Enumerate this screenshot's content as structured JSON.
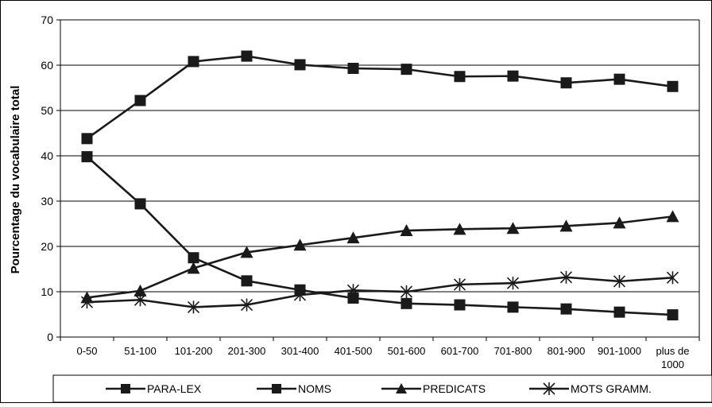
{
  "chart_data": {
    "type": "line",
    "ylabel": "Pourcentage du vocabulaire total",
    "xlabel": "",
    "ylim": [
      0,
      70
    ],
    "yticks": [
      0,
      10,
      20,
      30,
      40,
      50,
      60,
      70
    ],
    "grid": "horizontal",
    "legend_position": "bottom",
    "categories": [
      "0-50",
      "51-100",
      "101-200",
      "201-300",
      "301-400",
      "401-500",
      "501-600",
      "601-700",
      "701-800",
      "801-900",
      "901-1000",
      "plus de 1000"
    ],
    "series": [
      {
        "name": "PARA-LEX",
        "marker": "square",
        "values": [
          43.8,
          52.2,
          60.8,
          62.0,
          60.1,
          59.3,
          59.1,
          57.5,
          57.6,
          56.1,
          56.9,
          55.3
        ]
      },
      {
        "name": "NOMS",
        "marker": "square",
        "values": [
          39.8,
          29.4,
          17.5,
          12.4,
          10.4,
          8.6,
          7.4,
          7.1,
          6.6,
          6.2,
          5.5,
          4.9
        ]
      },
      {
        "name": "PREDICATS",
        "marker": "triangle",
        "values": [
          8.7,
          10.2,
          15.2,
          18.7,
          20.3,
          21.9,
          23.5,
          23.8,
          24.0,
          24.5,
          25.2,
          26.6
        ]
      },
      {
        "name": "MOTS GRAMM.",
        "marker": "star",
        "values": [
          7.7,
          8.2,
          6.6,
          7.1,
          9.3,
          10.3,
          10.0,
          11.6,
          11.9,
          13.2,
          12.3,
          13.1
        ]
      }
    ],
    "colors": {
      "line": "#1a1a1a",
      "grid": "#000000",
      "background": "#ffffff"
    }
  }
}
